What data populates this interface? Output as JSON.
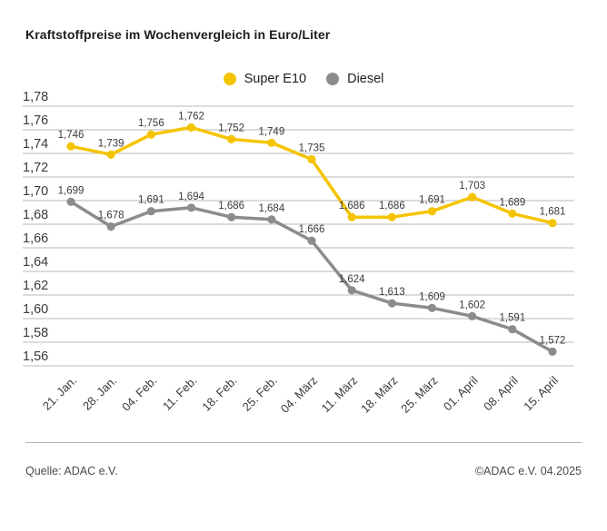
{
  "header": {
    "title": "Kraftstoffpreise im Wochenvergleich in Euro/Liter"
  },
  "chart_data": {
    "type": "line",
    "title": "Kraftstoffpreise im Wochenvergleich in Euro/Liter",
    "unit": "Euro/Liter",
    "categories": [
      "21. Jan.",
      "28. Jan.",
      "04. Feb.",
      "11. Feb.",
      "18. Feb.",
      "25. Feb.",
      "04. März",
      "11. März",
      "18. März",
      "25. März",
      "01. April",
      "08. April",
      "15. April"
    ],
    "series": [
      {
        "name": "Super E10",
        "color": "#F5C400",
        "values": [
          1.746,
          1.739,
          1.756,
          1.762,
          1.752,
          1.749,
          1.735,
          1.686,
          1.686,
          1.691,
          1.703,
          1.689,
          1.681
        ]
      },
      {
        "name": "Diesel",
        "color": "#8C8C8C",
        "values": [
          1.699,
          1.678,
          1.691,
          1.694,
          1.686,
          1.684,
          1.666,
          1.624,
          1.613,
          1.609,
          1.602,
          1.591,
          1.572
        ]
      }
    ],
    "ylim": [
      1.56,
      1.78
    ],
    "ytick_labels": [
      "1,78",
      "1,76",
      "1,74",
      "1,72",
      "1,70",
      "1,68",
      "1,66",
      "1,64",
      "1,62",
      "1,60",
      "1,58",
      "1,56"
    ],
    "grid": true,
    "legend_position": "top-center",
    "decimal_separator": ","
  },
  "footer": {
    "source": "Quelle: ADAC e.V.",
    "copyright": "©ADAC e.V. 04.2025"
  }
}
